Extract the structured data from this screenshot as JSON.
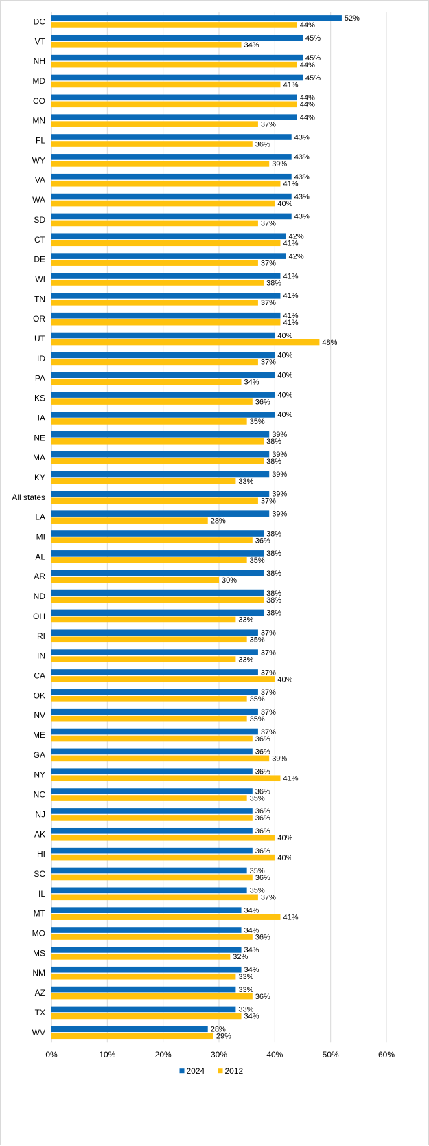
{
  "chart_data": {
    "type": "bar",
    "orientation": "horizontal",
    "categories": [
      "DC",
      "VT",
      "NH",
      "MD",
      "CO",
      "MN",
      "FL",
      "WY",
      "VA",
      "WA",
      "SD",
      "CT",
      "DE",
      "WI",
      "TN",
      "OR",
      "UT",
      "ID",
      "PA",
      "KS",
      "IA",
      "NE",
      "MA",
      "KY",
      "All states",
      "LA",
      "MI",
      "AL",
      "AR",
      "ND",
      "OH",
      "RI",
      "IN",
      "CA",
      "OK",
      "NV",
      "ME",
      "GA",
      "NY",
      "NC",
      "NJ",
      "AK",
      "HI",
      "SC",
      "IL",
      "MT",
      "MO",
      "MS",
      "NM",
      "AZ",
      "TX",
      "WV"
    ],
    "series": [
      {
        "name": "2024",
        "color": "#0a6ab8",
        "values": [
          52,
          45,
          45,
          45,
          44,
          44,
          43,
          43,
          43,
          43,
          43,
          42,
          42,
          41,
          41,
          41,
          40,
          40,
          40,
          40,
          40,
          39,
          39,
          39,
          39,
          39,
          38,
          38,
          38,
          38,
          38,
          37,
          37,
          37,
          37,
          37,
          37,
          36,
          36,
          36,
          36,
          36,
          36,
          35,
          35,
          34,
          34,
          34,
          34,
          33,
          33,
          28
        ],
        "labels": [
          "52%",
          "45%",
          "45%",
          "45%",
          "44%",
          "44%",
          "43%",
          "43%",
          "43%",
          "43%",
          "43%",
          "42%",
          "42%",
          "41%",
          "41%",
          "41%",
          "40%",
          "40%",
          "40%",
          "40%",
          "40%",
          "39%",
          "39%",
          "39%",
          "39%",
          "39%",
          "38%",
          "38%",
          "38%",
          "38%",
          "38%",
          "37%",
          "37%",
          "37%",
          "37%",
          "37%",
          "37%",
          "36%",
          "36%",
          "36%",
          "36%",
          "36%",
          "36%",
          "35%",
          "35%",
          "34%",
          "34%",
          "34%",
          "34%",
          "33%",
          "33%",
          "28%"
        ]
      },
      {
        "name": "2012",
        "color": "#ffc20e",
        "values": [
          44,
          34,
          44,
          41,
          44,
          37,
          36,
          39,
          41,
          40,
          37,
          41,
          37,
          38,
          37,
          41,
          48,
          37,
          34,
          36,
          35,
          38,
          38,
          33,
          37,
          28,
          36,
          35,
          30,
          38,
          33,
          35,
          33,
          40,
          35,
          35,
          36,
          39,
          41,
          35,
          36,
          40,
          40,
          36,
          37,
          41,
          36,
          32,
          33,
          36,
          34,
          29
        ],
        "labels": [
          "44%",
          "34%",
          "44%",
          "41%",
          "44%",
          "37%",
          "36%",
          "39%",
          "41%",
          "40%",
          "37%",
          "41%",
          "37%",
          "38%",
          "37%",
          "41%",
          "48%",
          "37%",
          "34%",
          "36%",
          "35%",
          "38%",
          "38%",
          "33%",
          "37%",
          "28%",
          "36%",
          "35%",
          "30%",
          "38%",
          "33%",
          "35%",
          "33%",
          "40%",
          "35%",
          "35%",
          "36%",
          "39%",
          "41%",
          "35%",
          "36%",
          "40%",
          "40%",
          "36%",
          "37%",
          "41%",
          "36%",
          "32%",
          "33%",
          "36%",
          "34%",
          "29%"
        ]
      }
    ],
    "xlim": [
      0,
      60
    ],
    "xticks": [
      0,
      10,
      20,
      30,
      40,
      50,
      60
    ],
    "xtick_labels": [
      "0%",
      "10%",
      "20%",
      "30%",
      "40%",
      "50%",
      "60%"
    ],
    "grid": true,
    "legend": {
      "position": "bottom",
      "entries": [
        "2024",
        "2012"
      ]
    },
    "title": "",
    "xlabel": "",
    "ylabel": ""
  }
}
